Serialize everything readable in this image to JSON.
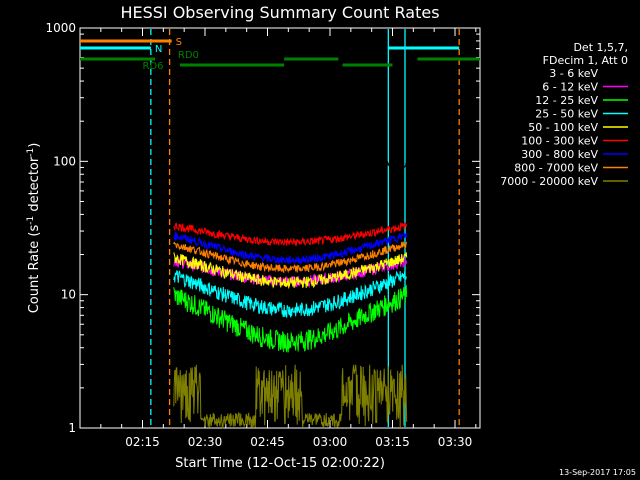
{
  "chart_data": {
    "type": "line",
    "title": "HESSI Observing Summary Count Rates",
    "xlabel": "Start Time (12-Oct-15 02:00:22)",
    "ylabel_main": "Count Rate (s",
    "ylabel_sup1": "-1",
    "ylabel_mid": " detector",
    "ylabel_sup2": "-1",
    "ylabel_end": ")",
    "y_scale": "log",
    "ylim": [
      1,
      1000
    ],
    "y_ticks": [
      {
        "value": 1,
        "label": "1"
      },
      {
        "value": 10,
        "label": "10"
      },
      {
        "value": 100,
        "label": "100"
      },
      {
        "value": 1000,
        "label": "1000"
      }
    ],
    "xlim_minutes": [
      0,
      96
    ],
    "x_ticks": [
      {
        "minute": 15,
        "label": "02:15"
      },
      {
        "minute": 30,
        "label": "02:30"
      },
      {
        "minute": 45,
        "label": "02:45"
      },
      {
        "minute": 60,
        "label": "03:00"
      },
      {
        "minute": 75,
        "label": "03:15"
      },
      {
        "minute": 90,
        "label": "03:30"
      }
    ],
    "legend_position": "top-right",
    "legend_header": [
      "Det 1,5,7,",
      "FDecim 1, Att 0"
    ],
    "series": [
      {
        "name": "3 - 6 keV",
        "color": "#000000",
        "base": 95,
        "curve": 0.02,
        "noise": 0.05
      },
      {
        "name": "6 - 12 keV",
        "color": "#ff00ff",
        "base": 18,
        "curve": 0.3,
        "noise": 0.1
      },
      {
        "name": "12 - 25 keV",
        "color": "#00ff00",
        "base": 10,
        "curve": 0.55,
        "noise": 0.18
      },
      {
        "name": "25 - 50 keV",
        "color": "#00ffff",
        "base": 14,
        "curve": 0.45,
        "noise": 0.13
      },
      {
        "name": "50 - 100 keV",
        "color": "#ffff00",
        "base": 19,
        "curve": 0.35,
        "noise": 0.1
      },
      {
        "name": "100 - 300 keV",
        "color": "#ff0000",
        "base": 33,
        "curve": 0.25,
        "noise": 0.07
      },
      {
        "name": "300 - 800 keV",
        "color": "#0000ff",
        "base": 28,
        "curve": 0.35,
        "noise": 0.07
      },
      {
        "name": "800 - 7000 keV",
        "color": "#ff8000",
        "base": 24,
        "curve": 0.35,
        "noise": 0.07
      },
      {
        "name": "7000 - 20000 keV",
        "color": "#808000",
        "base": 2,
        "curve": 0.2,
        "noise": 0.3
      }
    ],
    "data_window_minutes": [
      22.5,
      78.5
    ],
    "flags": [
      {
        "label": "S",
        "color": "#ff8000",
        "start": 0,
        "end": 22
      },
      {
        "label": "N",
        "color": "#00ffff",
        "start": 0,
        "end": 17
      },
      {
        "label": "N",
        "color": "#00ffff",
        "start": 74,
        "end": 91
      },
      {
        "label": "RD0",
        "color": "#008000",
        "start": 0,
        "end": 96
      },
      {
        "label": "RD6",
        "color": "#008000",
        "start": 22,
        "end": 32
      }
    ],
    "vertical_markers": [
      {
        "minute": 17,
        "color": "#00ffff",
        "style": "dashed"
      },
      {
        "minute": 21.5,
        "color": "#ff8000",
        "style": "dashed"
      },
      {
        "minute": 74,
        "color": "#00ffff",
        "style": "solid"
      },
      {
        "minute": 78,
        "color": "#00ffff",
        "style": "solid"
      },
      {
        "minute": 91,
        "color": "#ff8000",
        "style": "dashed"
      }
    ]
  },
  "footer_timestamp": "13-Sep-2017 17:05"
}
